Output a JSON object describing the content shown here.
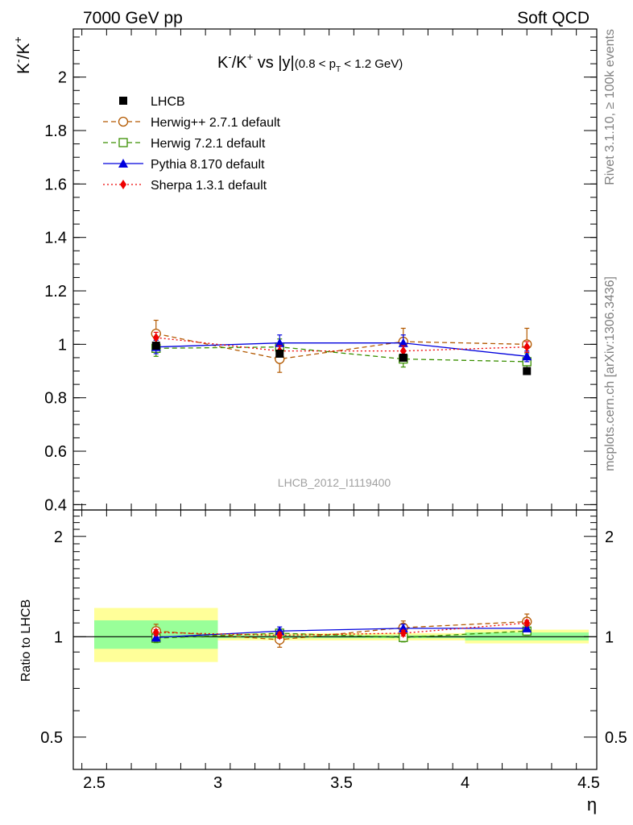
{
  "header": {
    "left": "7000 GeV pp",
    "right": "Soft QCD"
  },
  "side_text": {
    "rivet": "Rivet 3.1.10, ≥ 100k events",
    "mcplots": "mcplots.cern.ch [arXiv:1306.3436]"
  },
  "watermark": "LHCB_2012_I1119400",
  "chart_data": [
    {
      "type": "scatter",
      "panel": "main",
      "title": "K⁻/K⁺ vs |y|(0.8 < p_T < 1.2 GeV)",
      "title_parts": {
        "t1": "K",
        "t2": "-",
        "t3": "/K",
        "t4": "+",
        "t5": " vs |y|",
        "t6": "(0.8 < p",
        "t7": "T",
        "t8": " < 1.2 GeV)"
      },
      "ylabel_parts": {
        "a": "K",
        "b": "-",
        "c": "/K",
        "d": "+"
      },
      "xlabel": "η",
      "xlim": [
        2.5,
        4.5
      ],
      "ylim": [
        0.38,
        2.18
      ],
      "x_ticks": [
        2.5,
        3,
        3.5,
        4,
        4.5
      ],
      "x_tick_labels": [
        "2.5",
        "3",
        "3.5",
        "4",
        "4.5"
      ],
      "y_ticks": [
        0.4,
        0.6,
        0.8,
        1,
        1.2,
        1.4,
        1.6,
        1.8,
        2
      ],
      "y_tick_labels": [
        "0.4",
        "0.6",
        "0.8",
        "1",
        "1.2",
        "1.4",
        "1.6",
        "1.8",
        "2"
      ],
      "legend_position": "top-left",
      "series": [
        {
          "name": "LHCB",
          "color": "#000000",
          "marker": "square-filled",
          "line": "none",
          "x": [
            2.75,
            3.25,
            3.75,
            4.25
          ],
          "y": [
            0.995,
            0.965,
            0.95,
            0.9
          ],
          "yerr": [
            0.01,
            0.01,
            0.01,
            0.01
          ]
        },
        {
          "name": "Herwig++ 2.7.1 default",
          "color": "#b35900",
          "marker": "circle-open",
          "line": "dashed",
          "x": [
            2.75,
            3.25,
            3.75,
            4.25
          ],
          "y": [
            1.04,
            0.945,
            1.01,
            1.0
          ],
          "yerr": [
            0.05,
            0.05,
            0.05,
            0.06
          ]
        },
        {
          "name": "Herwig 7.2.1 default",
          "color": "#3a8f00",
          "marker": "square-open",
          "line": "dashed",
          "x": [
            2.75,
            3.25,
            3.75,
            4.25
          ],
          "y": [
            0.985,
            0.99,
            0.945,
            0.935
          ],
          "yerr": [
            0.03,
            0.03,
            0.03,
            0.03
          ]
        },
        {
          "name": "Pythia 8.170 default",
          "color": "#0000dd",
          "marker": "triangle-filled",
          "line": "solid",
          "x": [
            2.75,
            3.25,
            3.75,
            4.25
          ],
          "y": [
            0.99,
            1.005,
            1.005,
            0.955
          ],
          "yerr": [
            0.025,
            0.03,
            0.03,
            0.02
          ]
        },
        {
          "name": "Sherpa 1.3.1 default",
          "color": "#ee0000",
          "marker": "diamond-filled",
          "line": "dotted",
          "x": [
            2.75,
            3.25,
            3.75,
            4.25
          ],
          "y": [
            1.025,
            0.975,
            0.975,
            0.99
          ],
          "yerr": [
            0.02,
            0.02,
            0.02,
            0.02
          ]
        }
      ]
    },
    {
      "type": "scatter",
      "panel": "ratio",
      "ylabel": "Ratio to LHCB",
      "xlim": [
        2.5,
        4.5
      ],
      "ylim": [
        0.4,
        2.4
      ],
      "log_y": true,
      "y_ticks": [
        0.5,
        1,
        2
      ],
      "y_tick_labels": [
        "0.5",
        "1",
        "2"
      ],
      "bands": [
        {
          "x": [
            2.5,
            3.0
          ],
          "yellow": [
            0.84,
            1.22
          ],
          "green": [
            0.92,
            1.12
          ]
        },
        {
          "x": [
            3.0,
            3.5
          ],
          "yellow": [
            0.975,
            1.025
          ],
          "green": [
            0.99,
            1.01
          ]
        },
        {
          "x": [
            3.5,
            4.0
          ],
          "yellow": [
            0.975,
            1.025
          ],
          "green": [
            0.99,
            1.01
          ]
        },
        {
          "x": [
            4.0,
            4.5
          ],
          "yellow": [
            0.955,
            1.05
          ],
          "green": [
            0.975,
            1.03
          ]
        }
      ],
      "series": [
        {
          "name": "Herwig++ 2.7.1 default",
          "color": "#b35900",
          "marker": "circle-open",
          "line": "dashed",
          "x": [
            2.75,
            3.25,
            3.75,
            4.25
          ],
          "y": [
            1.04,
            0.98,
            1.065,
            1.11
          ],
          "yerr": [
            0.05,
            0.05,
            0.05,
            0.06
          ]
        },
        {
          "name": "Herwig 7.2.1 default",
          "color": "#3a8f00",
          "marker": "square-open",
          "line": "dashed",
          "x": [
            2.75,
            3.25,
            3.75,
            4.25
          ],
          "y": [
            0.99,
            1.025,
            0.995,
            1.04
          ],
          "yerr": [
            0.03,
            0.03,
            0.03,
            0.03
          ]
        },
        {
          "name": "Pythia 8.170 default",
          "color": "#0000dd",
          "marker": "triangle-filled",
          "line": "solid",
          "x": [
            2.75,
            3.25,
            3.75,
            4.25
          ],
          "y": [
            0.995,
            1.04,
            1.06,
            1.06
          ],
          "yerr": [
            0.025,
            0.03,
            0.03,
            0.02
          ]
        },
        {
          "name": "Sherpa 1.3.1 default",
          "color": "#ee0000",
          "marker": "diamond-filled",
          "line": "dotted",
          "x": [
            2.75,
            3.25,
            3.75,
            4.25
          ],
          "y": [
            1.03,
            1.01,
            1.025,
            1.1
          ],
          "yerr": [
            0.02,
            0.02,
            0.02,
            0.02
          ]
        }
      ]
    }
  ]
}
